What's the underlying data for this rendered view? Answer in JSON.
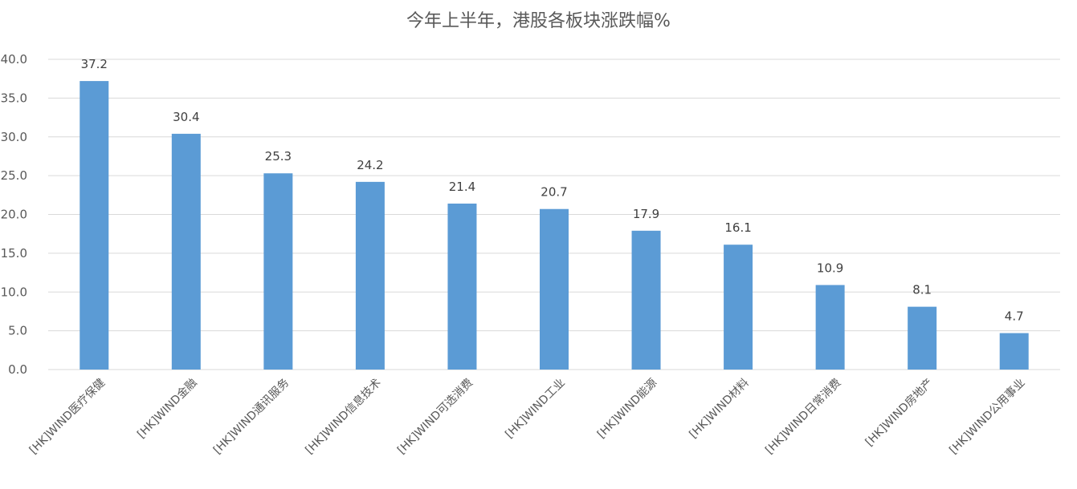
{
  "chart_data": {
    "type": "bar",
    "title": "今年上半年，港股各板块涨跌幅%",
    "xlabel": "",
    "ylabel": "",
    "categories": [
      "[HK]WIND医疗保健",
      "[HK]WIND金融",
      "[HK]WIND通讯服务",
      "[HK]WIND信息技术",
      "[HK]WIND可选消费",
      "[HK]WIND工业",
      "[HK]WIND能源",
      "[HK]WIND材料",
      "[HK]WIND日常消费",
      "[HK]WIND房地产",
      "[HK]WIND公用事业"
    ],
    "values": [
      37.2,
      30.4,
      25.3,
      24.2,
      21.4,
      20.7,
      17.9,
      16.1,
      10.9,
      8.1,
      4.7
    ],
    "data_labels": [
      "37.2",
      "30.4",
      "25.3",
      "24.2",
      "21.4",
      "20.7",
      "17.9",
      "16.1",
      "10.9",
      "8.1",
      "4.7"
    ],
    "ylim": [
      0,
      40
    ],
    "yticks": [
      "0.0",
      "5.0",
      "10.0",
      "15.0",
      "20.0",
      "25.0",
      "30.0",
      "35.0",
      "40.0"
    ],
    "grid": true,
    "legend": "none",
    "bar_color": "#5b9bd5",
    "grid_color": "#d9d9d9"
  }
}
